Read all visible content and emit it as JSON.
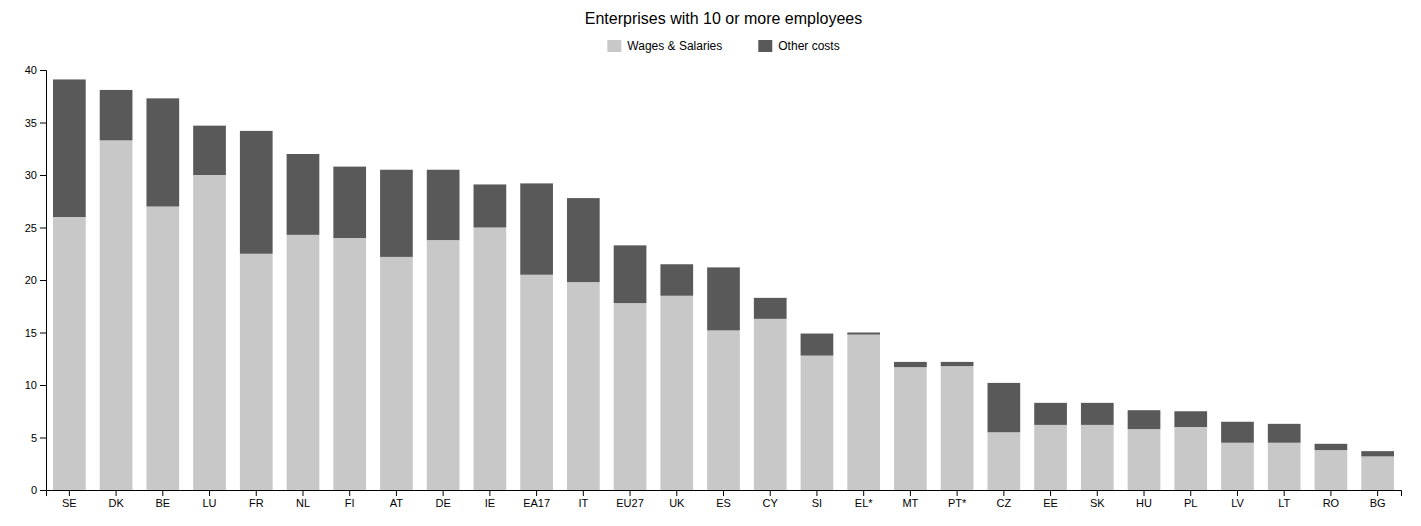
{
  "chart_data": {
    "type": "bar",
    "stacked": true,
    "title": "Enterprises with 10 or more employees",
    "categories": [
      "SE",
      "DK",
      "BE",
      "LU",
      "FR",
      "NL",
      "FI",
      "AT",
      "DE",
      "IE",
      "EA17",
      "IT",
      "EU27",
      "UK",
      "ES",
      "CY",
      "SI",
      "EL*",
      "MT",
      "PT*",
      "CZ",
      "EE",
      "SK",
      "HU",
      "PL",
      "LV",
      "LT",
      "RO",
      "BG"
    ],
    "series": [
      {
        "name": "Wages & Salaries",
        "color": "#c8c8c8",
        "values": [
          26.0,
          33.3,
          27.0,
          30.0,
          22.5,
          24.3,
          24.0,
          22.2,
          23.8,
          25.0,
          20.5,
          19.8,
          17.8,
          18.5,
          15.2,
          16.3,
          12.8,
          14.8,
          11.7,
          11.8,
          5.5,
          6.2,
          6.2,
          5.8,
          6.0,
          4.5,
          4.5,
          3.8,
          3.2
        ]
      },
      {
        "name": "Other costs",
        "color": "#595959",
        "values": [
          13.1,
          4.8,
          10.3,
          4.7,
          11.7,
          7.7,
          6.8,
          8.3,
          6.7,
          4.1,
          8.7,
          8.0,
          5.5,
          3.0,
          6.0,
          2.0,
          2.1,
          0.2,
          0.5,
          0.4,
          4.7,
          2.1,
          2.1,
          1.8,
          1.5,
          2.0,
          1.8,
          0.6,
          0.5
        ]
      }
    ],
    "ylim": [
      0,
      40
    ],
    "yticks": [
      0,
      5,
      10,
      15,
      20,
      25,
      30,
      35,
      40
    ],
    "grid": false,
    "legend": "top"
  }
}
